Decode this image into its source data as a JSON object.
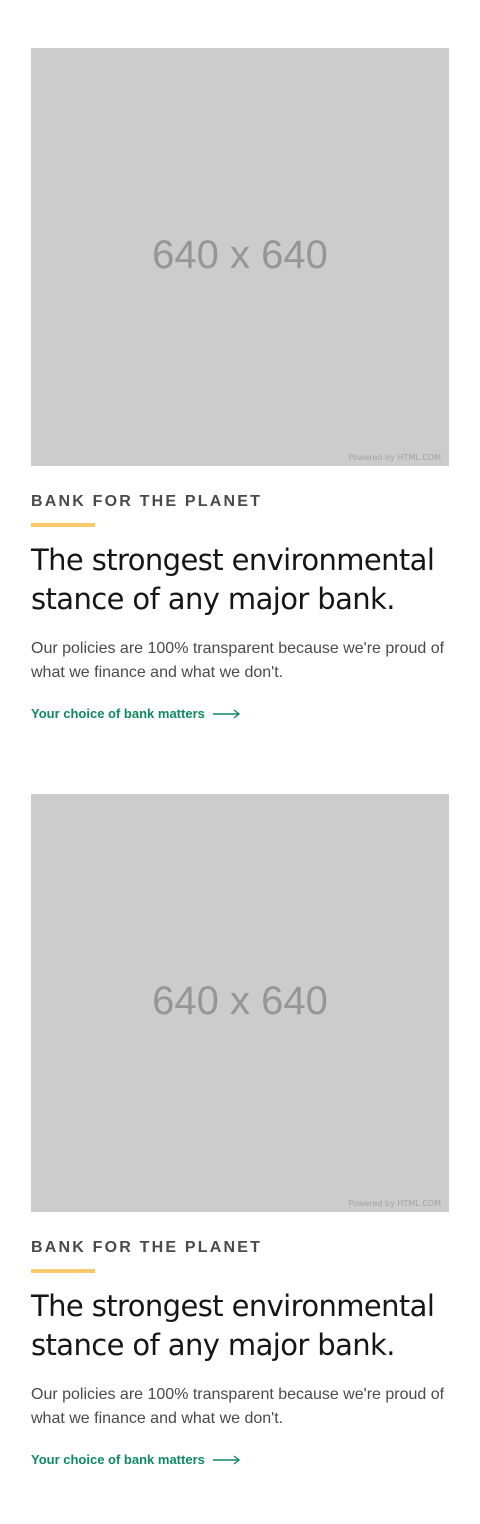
{
  "cards": [
    {
      "image": {
        "placeholder_text": "640 x 640",
        "powered_by": "Powered by HTML.COM"
      },
      "eyebrow": "BANK FOR THE PLANET",
      "headline": "The strongest environmental stance of any major bank.",
      "body": "Our policies are 100% transparent because we're proud of what we finance and what we don't.",
      "cta_label": "Your choice of bank matters",
      "cta_icon": "arrow-right-icon"
    },
    {
      "image": {
        "placeholder_text": "640 x 640",
        "powered_by": "Powered by HTML.COM"
      },
      "eyebrow": "BANK FOR THE PLANET",
      "headline": "The strongest environmental stance of any major bank.",
      "body": "Our policies are 100% transparent because we're proud of what we finance and what we don't.",
      "cta_label": "Your choice of bank matters",
      "cta_icon": "arrow-right-icon"
    }
  ],
  "colors": {
    "accent": "#f7c96a",
    "link": "#0f8a5f",
    "placeholder_bg": "#cccccc",
    "heading": "#161616",
    "body": "#4a4a4a"
  }
}
